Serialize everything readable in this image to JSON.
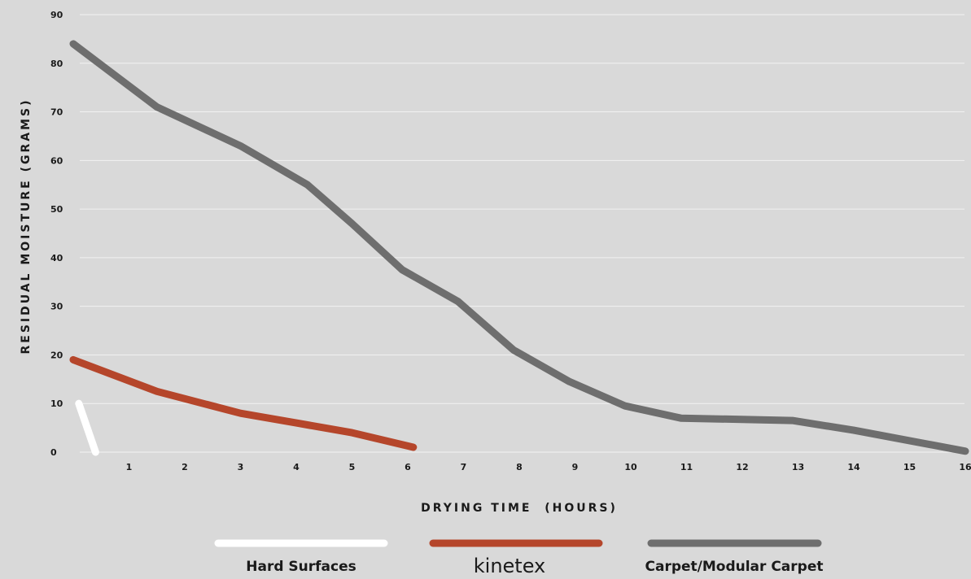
{
  "chart_data": {
    "type": "line",
    "title": "",
    "xlabel": "DRYING TIME  (HOURS)",
    "ylabel": "RESIDUAL MOISTURE (GRAMS)",
    "xlim": [
      0,
      16
    ],
    "ylim": [
      0,
      90
    ],
    "xticks": [
      1,
      2,
      3,
      4,
      5,
      6,
      7,
      8,
      9,
      10,
      11,
      12,
      13,
      14,
      15,
      16
    ],
    "yticks": [
      0,
      10,
      20,
      30,
      40,
      50,
      60,
      70,
      80,
      90
    ],
    "grid": "horizontal",
    "legend": "bottom",
    "series": [
      {
        "name": "Hard Surfaces",
        "color": "#ffffff",
        "points": [
          [
            0.1,
            10
          ],
          [
            0.4,
            0
          ]
        ]
      },
      {
        "name": "kinetex",
        "color": "#b5462b",
        "points": [
          [
            0,
            19
          ],
          [
            1.5,
            12.5
          ],
          [
            3,
            8
          ],
          [
            4,
            6
          ],
          [
            5,
            4
          ],
          [
            6.1,
            1
          ]
        ]
      },
      {
        "name": "Carpet/Modular Carpet",
        "color": "#6e6e6e",
        "points": [
          [
            0,
            84
          ],
          [
            1.5,
            71
          ],
          [
            3,
            63
          ],
          [
            4.2,
            55
          ],
          [
            5,
            47
          ],
          [
            5.9,
            37.5
          ],
          [
            6.9,
            31
          ],
          [
            7.9,
            21
          ],
          [
            8.9,
            14.5
          ],
          [
            9.9,
            9.5
          ],
          [
            10.9,
            7
          ],
          [
            12.9,
            6.5
          ],
          [
            14,
            4.5
          ],
          [
            16,
            0.2
          ]
        ]
      }
    ]
  }
}
